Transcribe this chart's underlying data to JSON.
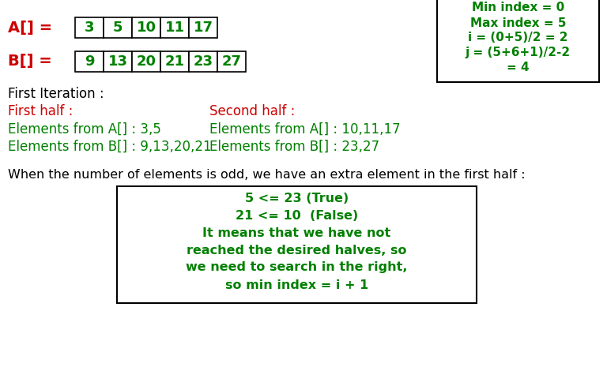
{
  "bg_color": "#ffffff",
  "red_color": "#cc0000",
  "green_color": "#008000",
  "black_color": "#000000",
  "array_A": [
    "3",
    "5",
    "10",
    "11",
    "17"
  ],
  "array_B": [
    "9",
    "13",
    "20",
    "21",
    "23",
    "27"
  ],
  "label_A": "A[] =",
  "label_B": "B[] =",
  "first_iter_label": "First Iteration :",
  "first_half_label": "First half :",
  "second_half_label": "Second half :",
  "elem_A_first": "Elements from A[] : 3,5",
  "elem_A_second": "Elements from A[] : 10,11,17",
  "elem_B_first": "Elements from B[] : 9,13,20,21",
  "elem_B_second": "Elements from B[] : 23,27",
  "info_box_lines": [
    "Min index = 0",
    "Max index = 5",
    "i = (0+5)/2 = 2",
    "j = (5+6+1)/2-2",
    "= 4"
  ],
  "odd_note": "When the number of elements is odd, we have an extra element in the first half :",
  "box_lines": [
    "5 <= 23 (True)",
    "21 <= 10  (False)",
    "It means that we have not",
    "reached the desired halves, so",
    "we need to search in the right,",
    "so min index = i + 1"
  ],
  "figsize": [
    7.68,
    4.84
  ],
  "dpi": 100
}
